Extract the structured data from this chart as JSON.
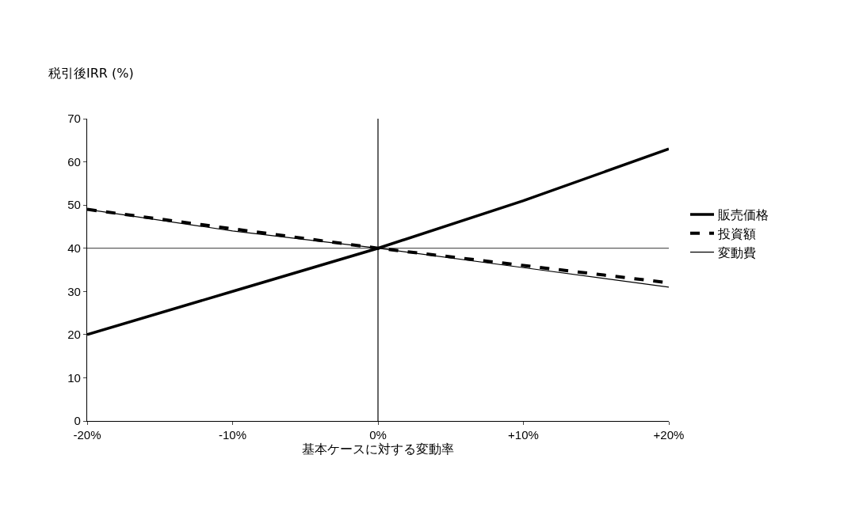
{
  "chart_data": {
    "type": "line",
    "ylabel": "税引後IRR (%)",
    "xlabel": "基本ケースに対する変動率",
    "x": [
      -20,
      -10,
      0,
      10,
      20
    ],
    "xlim": [
      -20,
      20
    ],
    "xticks": [
      {
        "value": -20,
        "label": "-20%"
      },
      {
        "value": -10,
        "label": "-10%"
      },
      {
        "value": 0,
        "label": "0%"
      },
      {
        "value": 10,
        "label": "+10%"
      },
      {
        "value": 20,
        "label": "+20%"
      }
    ],
    "ylim": [
      0,
      70
    ],
    "yticks": [
      0,
      10,
      20,
      30,
      40,
      50,
      60,
      70
    ],
    "series": [
      {
        "name": "販売価格",
        "color": "#000000",
        "values": [
          20,
          30,
          40,
          51,
          63
        ],
        "line_style": "solid"
      },
      {
        "name": "投資額",
        "color": "#000000",
        "values": [
          49,
          44.5,
          40,
          36,
          32
        ],
        "line_style": "dashed"
      },
      {
        "name": "変動費",
        "color": "#000000",
        "values": [
          49,
          44,
          40,
          35.5,
          31
        ],
        "line_style": "solid"
      }
    ],
    "ref_lines": [
      {
        "axis": "y",
        "value": 40,
        "color": "#000000"
      },
      {
        "axis": "x",
        "value": 0,
        "color": "#000000"
      }
    ],
    "legend": "right",
    "marker": "none"
  }
}
